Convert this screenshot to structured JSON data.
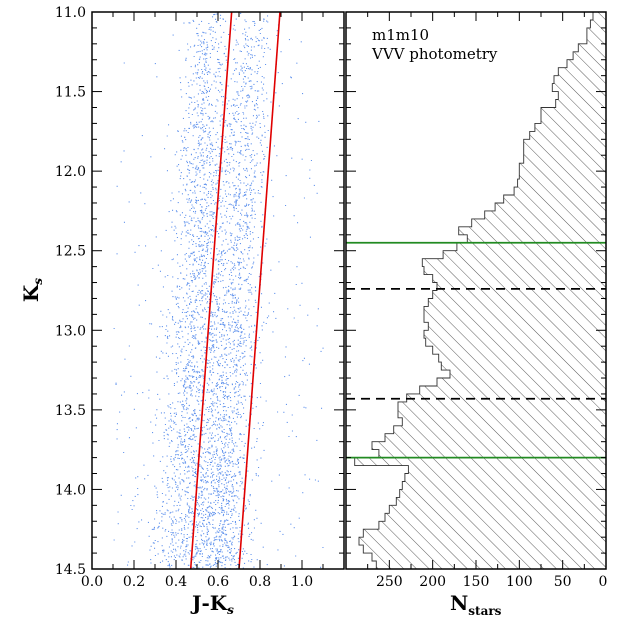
{
  "chart_data": [
    {
      "type": "scatter",
      "panel": "left",
      "xlabel": {
        "main": "J-K",
        "sub": "s"
      },
      "ylabel": {
        "main": "K",
        "sub": "s"
      },
      "xlim": [
        0.0,
        1.2
      ],
      "ylim": [
        14.5,
        11.0
      ],
      "y_inverted": true,
      "xticks": [
        "0.0",
        "0.2",
        "0.4",
        "0.6",
        "0.8",
        "1.0"
      ],
      "yticks": [
        "11.0",
        "11.5",
        "12.0",
        "12.5",
        "13.0",
        "13.5",
        "14.0",
        "14.5"
      ],
      "points_color": "#6495ED",
      "points_note_count_approx": 9000,
      "density_model": {
        "primary": {
          "x_at_top": 0.76,
          "x_at_bottom": 0.6,
          "sigma": 0.065,
          "weight": 0.45
        },
        "secondary": {
          "x_at_top": 0.55,
          "x_at_bottom": 0.45,
          "sigma": 0.08,
          "weight": 0.55
        },
        "field": {
          "x_range": [
            0.1,
            1.1
          ],
          "weight": 0.06
        }
      },
      "lines": [
        {
          "color": "#E00000",
          "x": [
            0.665,
            0.47
          ],
          "y": [
            11.0,
            14.5
          ]
        },
        {
          "color": "#E00000",
          "x": [
            0.895,
            0.7
          ],
          "y": [
            11.0,
            14.5
          ]
        }
      ]
    },
    {
      "type": "histogram",
      "panel": "right",
      "orientation": "horizontal",
      "annotation": [
        "m1m10",
        "VVV photometry"
      ],
      "xlabel": {
        "main": "N",
        "sub": "stars"
      },
      "xlim": [
        300,
        0
      ],
      "x_inverted": true,
      "ylim": [
        14.5,
        11.0
      ],
      "xticks": [
        "250",
        "200",
        "150",
        "100",
        "50",
        "0"
      ],
      "hatch": "diagonal",
      "bins_K": [
        11.0,
        11.05,
        11.1,
        11.15,
        11.2,
        11.25,
        11.3,
        11.35,
        11.4,
        11.45,
        11.5,
        11.55,
        11.6,
        11.65,
        11.7,
        11.75,
        11.8,
        11.85,
        11.9,
        11.95,
        12.0,
        12.05,
        12.1,
        12.15,
        12.2,
        12.25,
        12.3,
        12.35,
        12.4,
        12.45,
        12.5,
        12.55,
        12.6,
        12.65,
        12.7,
        12.75,
        12.8,
        12.85,
        12.9,
        12.95,
        13.0,
        13.05,
        13.1,
        13.15,
        13.2,
        13.25,
        13.3,
        13.35,
        13.4,
        13.45,
        13.5,
        13.55,
        13.6,
        13.65,
        13.7,
        13.75,
        13.8,
        13.85,
        13.9,
        13.95,
        14.0,
        14.05,
        14.1,
        14.15,
        14.2,
        14.25,
        14.3,
        14.35,
        14.4,
        14.45
      ],
      "counts": [
        15,
        18,
        22,
        22,
        32,
        38,
        45,
        55,
        60,
        62,
        55,
        58,
        75,
        75,
        82,
        88,
        95,
        95,
        95,
        100,
        100,
        102,
        106,
        118,
        128,
        140,
        155,
        170,
        160,
        172,
        188,
        212,
        210,
        200,
        195,
        200,
        205,
        210,
        210,
        205,
        210,
        208,
        200,
        193,
        190,
        180,
        195,
        215,
        230,
        240,
        240,
        235,
        245,
        255,
        270,
        262,
        290,
        228,
        232,
        235,
        238,
        242,
        250,
        255,
        262,
        280,
        285,
        280,
        270,
        265
      ],
      "hlines": [
        {
          "K": 12.45,
          "color": "#228B22",
          "style": "solid"
        },
        {
          "K": 12.74,
          "color": "#000000",
          "style": "dashed"
        },
        {
          "K": 13.43,
          "color": "#000000",
          "style": "dashed"
        },
        {
          "K": 13.8,
          "color": "#228B22",
          "style": "solid"
        }
      ]
    }
  ]
}
